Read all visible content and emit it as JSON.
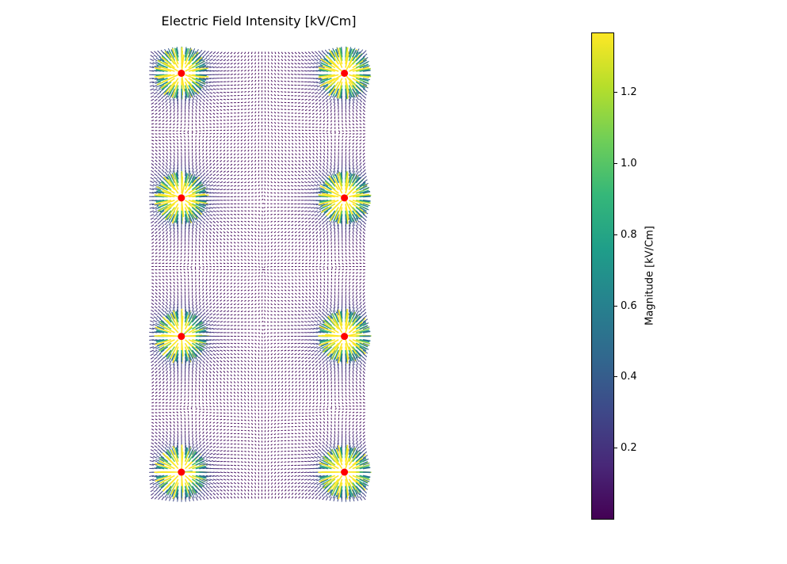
{
  "chart_data": {
    "type": "quiver",
    "title": "Electric Field Intensity [kV/Cm]",
    "axes_visible": false,
    "xlim": [
      0,
      7.6
    ],
    "ylim": [
      0,
      16.1
    ],
    "charges": [
      {
        "x": 1.0,
        "y": 15.4
      },
      {
        "x": 6.9,
        "y": 15.4
      },
      {
        "x": 1.0,
        "y": 10.9
      },
      {
        "x": 6.9,
        "y": 10.9
      },
      {
        "x": 1.0,
        "y": 5.9
      },
      {
        "x": 6.9,
        "y": 5.9
      },
      {
        "x": 1.0,
        "y": 1.0
      },
      {
        "x": 6.9,
        "y": 1.0
      }
    ],
    "charge_color": "#ff0000",
    "colormap": "viridis",
    "colorbar": {
      "label": "Magnitude [kV/Cm]",
      "range": [
        0.0,
        1.37
      ],
      "ticks": [
        "0.2",
        "0.4",
        "0.6",
        "0.8",
        "1.0",
        "1.2"
      ],
      "tick_values": [
        0.2,
        0.4,
        0.6,
        0.8,
        1.0,
        1.2
      ]
    }
  }
}
